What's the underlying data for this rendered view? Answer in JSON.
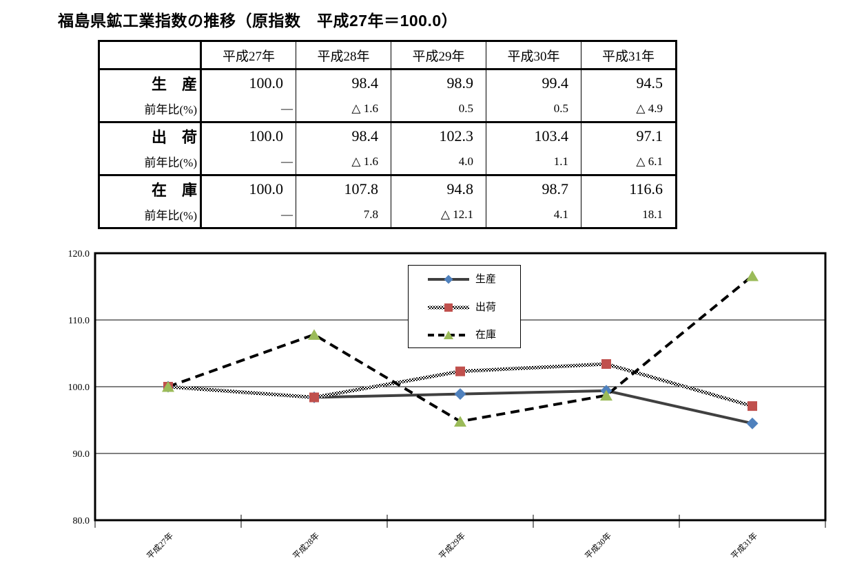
{
  "title": "福島県鉱工業指数の推移（原指数　平成27年＝100.0）",
  "table": {
    "corner": "",
    "years": [
      "平成27年",
      "平成28年",
      "平成29年",
      "平成30年",
      "平成31年"
    ],
    "yoy_label": "前年比(%)",
    "groups": [
      {
        "label": "生　産",
        "values": [
          "100.0",
          "98.4",
          "98.9",
          "99.4",
          "94.5"
        ],
        "yoy": [
          "—",
          "△ 1.6",
          "0.5",
          "0.5",
          "△ 4.9"
        ]
      },
      {
        "label": "出　荷",
        "values": [
          "100.0",
          "98.4",
          "102.3",
          "103.4",
          "97.1"
        ],
        "yoy": [
          "—",
          "△ 1.6",
          "4.0",
          "1.1",
          "△ 6.1"
        ]
      },
      {
        "label": "在　庫",
        "values": [
          "100.0",
          "107.8",
          "94.8",
          "98.7",
          "116.6"
        ],
        "yoy": [
          "—",
          "7.8",
          "△ 12.1",
          "4.1",
          "18.1"
        ]
      }
    ]
  },
  "chart_data": {
    "type": "line",
    "categories": [
      "平成27年",
      "平成28年",
      "平成29年",
      "平成30年",
      "平成31年"
    ],
    "series": [
      {
        "id": "production",
        "name": "生産",
        "values": [
          100.0,
          98.4,
          98.9,
          99.4,
          94.5
        ],
        "marker": "diamond",
        "marker_color": "#4F81BD",
        "line_color": "#404040",
        "line_style": "solid"
      },
      {
        "id": "shipments",
        "name": "出荷",
        "values": [
          100.0,
          98.4,
          102.3,
          103.4,
          97.1
        ],
        "marker": "square",
        "marker_color": "#C0504D",
        "line_color": "#000000",
        "line_style": "checkered"
      },
      {
        "id": "inventory",
        "name": "在庫",
        "values": [
          100.0,
          107.8,
          94.8,
          98.7,
          116.6
        ],
        "marker": "triangle",
        "marker_color": "#9BBB59",
        "line_color": "#000000",
        "line_style": "dashed"
      }
    ],
    "ylim": [
      80,
      120
    ],
    "yticks": [
      80,
      90,
      100,
      110,
      120
    ],
    "ytick_labels": [
      "80.0",
      "90.0",
      "100.0",
      "110.0",
      "120.0"
    ],
    "xlabel": "",
    "ylabel": "",
    "grid": "horizontal",
    "legend_position": "inside-top-center"
  }
}
